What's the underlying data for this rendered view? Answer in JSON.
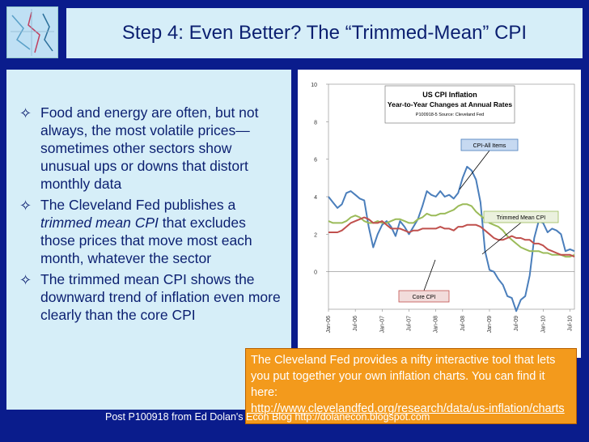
{
  "header": {
    "title": "Step 4: Even Better? The “Trimmed-Mean” CPI"
  },
  "bullets": {
    "b1": "Food and energy are often, but not always, the most volatile prices—sometimes other sectors show unusual ups or downs that distort monthly data",
    "b2_pre": "The Cleveland Fed publishes a ",
    "b2_italic": "trimmed mean CPI",
    "b2_post": " that excludes those prices that move most each month, whatever the sector",
    "b3": "The trimmed mean CPI shows the downward trend of inflation even more clearly than the core CPI",
    "mark": "✧"
  },
  "callout": {
    "text": "The Cleveland Fed provides a nifty interactive tool that lets you put together your own inflation charts. You can find it here:",
    "link": "http://www.clevelandfed.org/research/data/us-inflation/charts"
  },
  "footer": {
    "text": "Post P100918 from Ed Dolan's Econ Blog http://dolanecon.blogspot.com"
  },
  "colors": {
    "all_items": "#4a7ebb",
    "trimmed": "#9bbb59",
    "core": "#c0504d",
    "callout_bg": "#f39a1c"
  },
  "chart_data": {
    "type": "line",
    "title": "US CPI Inflation",
    "subtitle": "Year-to-Year Changes at Annual Rates",
    "source": "P100918-5 Source: Cleveland Fed",
    "ylim": [
      -2,
      10
    ],
    "yticks": [
      "0",
      "2",
      "4",
      "6",
      "8",
      "10"
    ],
    "xticks": [
      "Jan-06",
      "Jul-06",
      "Jan-07",
      "Jul-07",
      "Jan-08",
      "Jul-08",
      "Jan-09",
      "Jul-09",
      "Jan-10",
      "Jul-10"
    ],
    "series": [
      {
        "name": "CPI-All Items",
        "color": "#4a7ebb",
        "values": [
          4.0,
          3.7,
          3.4,
          3.6,
          4.2,
          4.3,
          4.1,
          3.9,
          3.8,
          2.4,
          1.3,
          2.0,
          2.5,
          2.7,
          2.4,
          1.9,
          2.7,
          2.4,
          2.0,
          2.4,
          2.8,
          3.5,
          4.3,
          4.1,
          4.0,
          4.3,
          4.0,
          4.1,
          3.9,
          4.2,
          5.0,
          5.6,
          5.4,
          4.9,
          3.7,
          1.1,
          0.1,
          0.0,
          -0.4,
          -0.7,
          -1.3,
          -1.4,
          -2.1,
          -1.5,
          -1.3,
          -0.2,
          1.8,
          2.7,
          2.6,
          2.1,
          2.3,
          2.2,
          2.0,
          1.1,
          1.2,
          1.1
        ]
      },
      {
        "name": "Trimmed Mean CPI",
        "color": "#9bbb59",
        "values": [
          2.7,
          2.6,
          2.6,
          2.6,
          2.7,
          2.9,
          3.0,
          2.9,
          2.7,
          2.6,
          2.6,
          2.7,
          2.6,
          2.6,
          2.7,
          2.8,
          2.8,
          2.7,
          2.6,
          2.6,
          2.8,
          2.9,
          3.1,
          3.0,
          3.0,
          3.1,
          3.1,
          3.2,
          3.3,
          3.5,
          3.6,
          3.6,
          3.5,
          3.2,
          3.0,
          2.8,
          2.6,
          2.5,
          2.4,
          2.2,
          1.9,
          1.7,
          1.5,
          1.3,
          1.2,
          1.1,
          1.1,
          1.1,
          1.0,
          1.0,
          0.9,
          0.9,
          0.9,
          0.8,
          0.8,
          0.9
        ]
      },
      {
        "name": "Core CPI",
        "color": "#c0504d",
        "values": [
          2.1,
          2.1,
          2.1,
          2.2,
          2.4,
          2.6,
          2.7,
          2.8,
          2.9,
          2.8,
          2.6,
          2.6,
          2.7,
          2.5,
          2.3,
          2.3,
          2.3,
          2.2,
          2.1,
          2.2,
          2.2,
          2.3,
          2.3,
          2.3,
          2.3,
          2.4,
          2.3,
          2.3,
          2.2,
          2.4,
          2.4,
          2.5,
          2.5,
          2.5,
          2.4,
          2.2,
          2.0,
          1.8,
          1.7,
          1.7,
          1.8,
          1.9,
          1.8,
          1.8,
          1.7,
          1.7,
          1.5,
          1.5,
          1.4,
          1.2,
          1.1,
          1.0,
          0.9,
          0.9,
          0.9,
          0.8
        ]
      }
    ]
  }
}
